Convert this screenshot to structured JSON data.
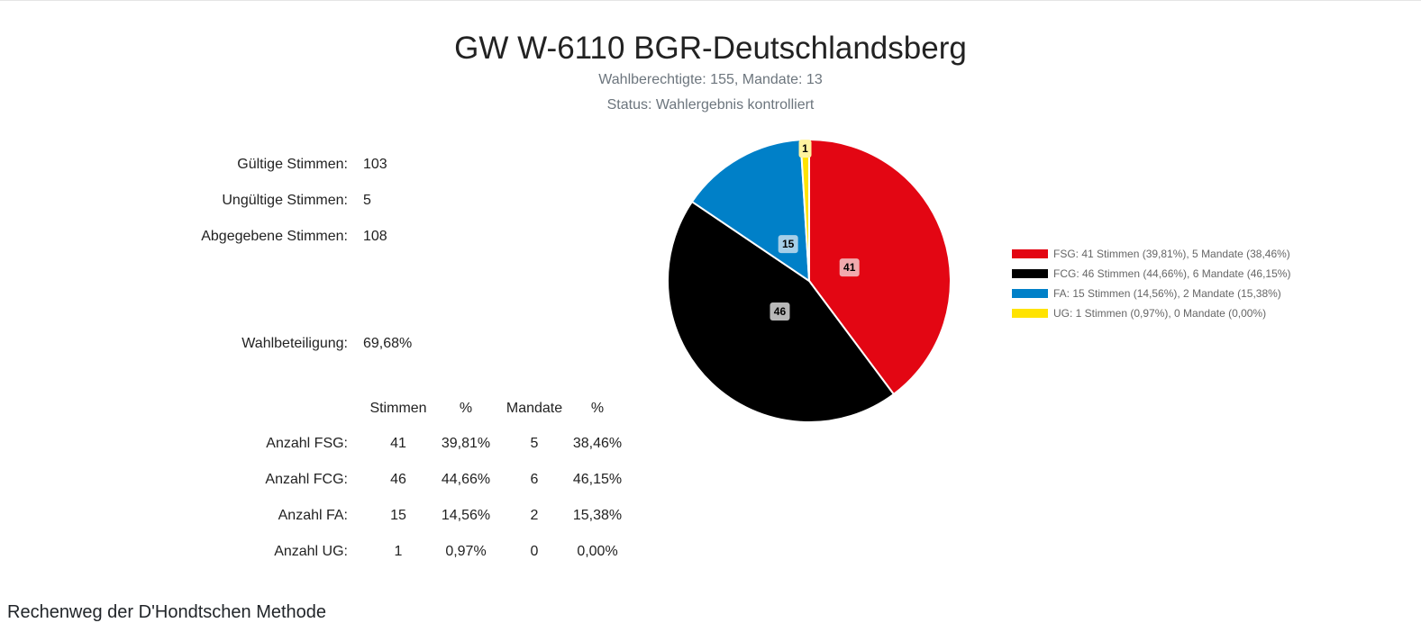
{
  "header": {
    "title": "GW W-6110 BGR-Deutschlandsberg",
    "subtitle1": "Wahlberechtigte: 155, Mandate: 13",
    "subtitle2": "Status: Wahlergebnis kontrolliert"
  },
  "stats": {
    "valid_label": "Gültige Stimmen:",
    "valid_value": "103",
    "invalid_label": "Ungültige Stimmen:",
    "invalid_value": "5",
    "cast_label": "Abgegebene Stimmen:",
    "cast_value": "108",
    "turnout_label": "Wahlbeteiligung:",
    "turnout_value": "69,68%"
  },
  "table": {
    "headers": [
      "Stimmen",
      "%",
      "Mandate",
      "%"
    ],
    "rows": [
      {
        "label": "Anzahl FSG:",
        "votes": "41",
        "votes_pct": "39,81%",
        "seats": "5",
        "seats_pct": "38,46%"
      },
      {
        "label": "Anzahl FCG:",
        "votes": "46",
        "votes_pct": "44,66%",
        "seats": "6",
        "seats_pct": "46,15%"
      },
      {
        "label": "Anzahl FA:",
        "votes": "15",
        "votes_pct": "14,56%",
        "seats": "2",
        "seats_pct": "15,38%"
      },
      {
        "label": "Anzahl UG:",
        "votes": "1",
        "votes_pct": "0,97%",
        "seats": "0",
        "seats_pct": "0,00%"
      }
    ]
  },
  "chart_data": {
    "type": "pie",
    "title": "",
    "legend_position": "right",
    "slices": [
      {
        "name": "FSG",
        "value": 41,
        "color": "#e30613",
        "label_bg": "#f1aaae",
        "legend": "FSG: 41 Stimmen (39,81%), 5 Mandate (38,46%)"
      },
      {
        "name": "FCG",
        "value": 46,
        "color": "#000000",
        "label_bg": "#b8b8b8",
        "legend": "FCG: 46 Stimmen (44,66%), 6 Mandate (46,15%)"
      },
      {
        "name": "FA",
        "value": 15,
        "color": "#0080c8",
        "label_bg": "#a6cfe8",
        "legend": "FA: 15 Stimmen (14,56%), 2 Mandate (15,38%)"
      },
      {
        "name": "UG",
        "value": 1,
        "color": "#ffe300",
        "label_bg": "#fff3a0",
        "legend": "UG: 1 Stimmen (0,97%), 0 Mandate (0,00%)"
      }
    ]
  },
  "footer": {
    "heading": "Rechenweg der D'Hondtschen Methode"
  }
}
